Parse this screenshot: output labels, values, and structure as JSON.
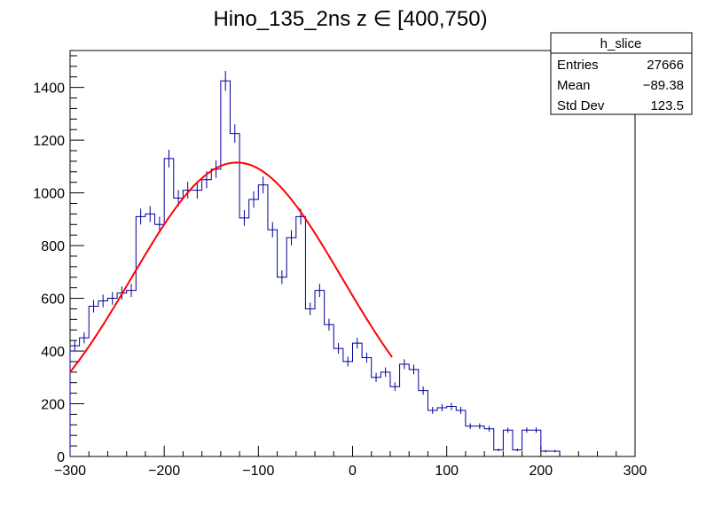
{
  "chart_data": {
    "type": "histogram",
    "title": "Hino_135_2ns z  ∈ [400,750)",
    "xlim": [
      -300,
      300
    ],
    "ylim": [
      0,
      1540
    ],
    "x_ticks": [
      -300,
      -200,
      -100,
      0,
      100,
      200,
      300
    ],
    "y_ticks": [
      0,
      200,
      400,
      600,
      800,
      1000,
      1200,
      1400
    ],
    "bin_width": 10,
    "bin_edges_start": -300,
    "series": [
      {
        "name": "h_slice",
        "color": "#000099",
        "values": [
          420,
          450,
          570,
          590,
          600,
          620,
          630,
          910,
          920,
          880,
          1130,
          980,
          1010,
          1010,
          1050,
          1090,
          1425,
          1225,
          905,
          975,
          1030,
          860,
          680,
          830,
          910,
          560,
          630,
          500,
          410,
          360,
          430,
          375,
          300,
          320,
          265,
          350,
          330,
          250,
          175,
          185,
          190,
          175,
          115,
          115,
          105,
          25,
          100,
          25,
          100,
          100,
          20,
          20
        ]
      }
    ],
    "fit": {
      "name": "gaussian fit",
      "color": "#ff0000",
      "amplitude": 1115,
      "mean": -123,
      "sigma": 112,
      "x_range": [
        -300,
        42
      ]
    },
    "stats_box": {
      "title": "h_slice",
      "rows": [
        {
          "label": "Entries",
          "value": "27666"
        },
        {
          "label": "Mean",
          "value": "−89.38"
        },
        {
          "label": "Std Dev",
          "value": "123.5"
        }
      ]
    }
  }
}
